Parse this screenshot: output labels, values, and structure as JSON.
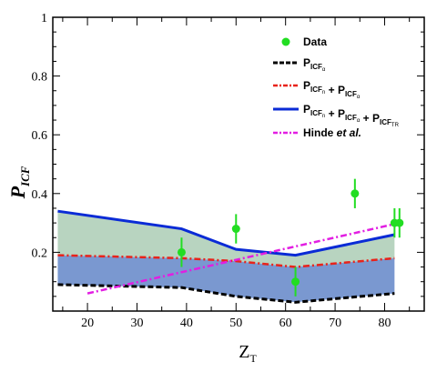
{
  "chart_data": {
    "type": "line",
    "xlabel": "Z",
    "xlabel_sub": "T",
    "ylabel": "P",
    "ylabel_sub": "ICF",
    "xlim": [
      13,
      88
    ],
    "ylim": [
      0,
      1
    ],
    "x_ticks": [
      20,
      30,
      40,
      50,
      60,
      70,
      80
    ],
    "y_ticks": [
      0.2,
      0.4,
      0.6,
      0.8,
      1
    ],
    "y_tick_labels": [
      "0.2",
      "0.4",
      "0.6",
      "0.8",
      "1"
    ],
    "legend_position": "top-right",
    "legend": [
      {
        "id": "data",
        "text": "Data"
      },
      {
        "id": "icf_alpha",
        "text": "P",
        "sub": "ICF",
        "subsub": "α"
      },
      {
        "id": "icf_n_alpha",
        "parts": [
          {
            "text": "P",
            "sub": "ICF",
            "subsub": "n"
          },
          {
            "text": " + "
          },
          {
            "text": "P",
            "sub": "ICF",
            "subsub": "α"
          }
        ]
      },
      {
        "id": "icf_total",
        "parts": [
          {
            "text": "P",
            "sub": "ICF",
            "subsub": "n"
          },
          {
            "text": " + "
          },
          {
            "text": "P",
            "sub": "ICF",
            "subsub": "α"
          },
          {
            "text": " + "
          },
          {
            "text": "P",
            "sub": "ICF",
            "subsub": "TR"
          }
        ]
      },
      {
        "id": "hinde",
        "text": "Hinde ",
        "italic": "et al."
      }
    ],
    "series": [
      {
        "id": "data",
        "style": "points-errorbars",
        "color": "#22dd22",
        "x": [
          39,
          50,
          62,
          74,
          82,
          83
        ],
        "y": [
          0.2,
          0.28,
          0.1,
          0.4,
          0.3,
          0.3
        ],
        "err": [
          0.05,
          0.05,
          0.05,
          0.05,
          0.05,
          0.05
        ]
      },
      {
        "id": "icf_alpha",
        "style": "dashed",
        "color": "#000000",
        "x": [
          14,
          39,
          50,
          62,
          82
        ],
        "y": [
          0.09,
          0.08,
          0.05,
          0.03,
          0.06
        ]
      },
      {
        "id": "icf_n_alpha",
        "style": "dashdot",
        "color": "#e8231b",
        "x": [
          14,
          39,
          50,
          62,
          82
        ],
        "y": [
          0.19,
          0.18,
          0.17,
          0.15,
          0.18
        ]
      },
      {
        "id": "icf_total",
        "style": "solid",
        "color": "#0a2bd6",
        "x": [
          14,
          39,
          50,
          62,
          82
        ],
        "y": [
          0.34,
          0.28,
          0.21,
          0.19,
          0.26
        ]
      },
      {
        "id": "hinde",
        "style": "dashdot",
        "color": "#e21ee2",
        "x": [
          20,
          83
        ],
        "y": [
          0.06,
          0.3
        ]
      }
    ],
    "bands": [
      {
        "lower": "icf_n_alpha",
        "upper": "icf_total",
        "color": "#b8d4c0"
      },
      {
        "lower": "icf_alpha",
        "upper": "icf_n_alpha",
        "color": "#7a98d0"
      }
    ]
  }
}
